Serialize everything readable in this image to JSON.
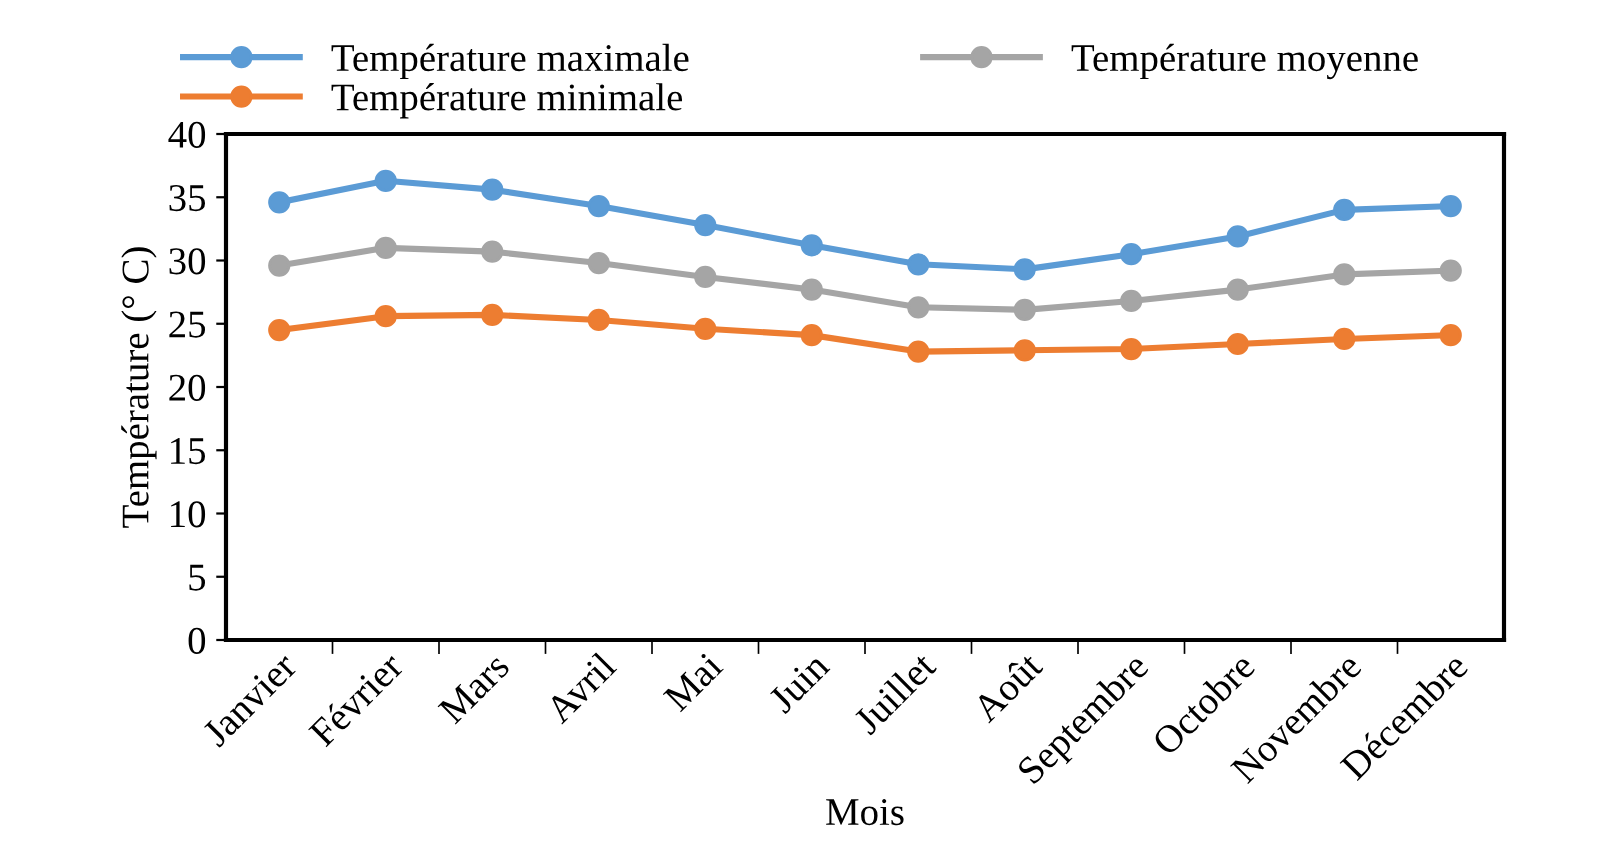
{
  "chart_data": {
    "type": "line",
    "xlabel": "Mois",
    "ylabel": "Température (° C)",
    "categories": [
      "Janvier",
      "Février",
      "Mars",
      "Avril",
      "Mai",
      "Juin",
      "Juillet",
      "Août",
      "Septembre",
      "Octobre",
      "Novembre",
      "Décembre"
    ],
    "series": [
      {
        "name": "Température maximale",
        "color": "#5b9bd5",
        "values": [
          34.6,
          36.3,
          35.6,
          34.3,
          32.8,
          31.2,
          29.7,
          29.3,
          30.5,
          31.9,
          34.0,
          34.3
        ]
      },
      {
        "name": "Température minimale",
        "color": "#ed7d31",
        "values": [
          24.5,
          25.6,
          25.7,
          25.3,
          24.6,
          24.1,
          22.8,
          22.9,
          23.0,
          23.4,
          23.8,
          24.1
        ]
      },
      {
        "name": "Température moyenne",
        "color": "#a5a5a5",
        "values": [
          29.6,
          31.0,
          30.7,
          29.8,
          28.7,
          27.7,
          26.3,
          26.1,
          26.8,
          27.7,
          28.9,
          29.2
        ]
      }
    ],
    "ylim": [
      0,
      40
    ],
    "yticks": [
      0,
      5,
      10,
      15,
      20,
      25,
      30,
      35,
      40
    ],
    "grid": false,
    "legend": "top",
    "marker": "circle",
    "line_style": "solid"
  }
}
